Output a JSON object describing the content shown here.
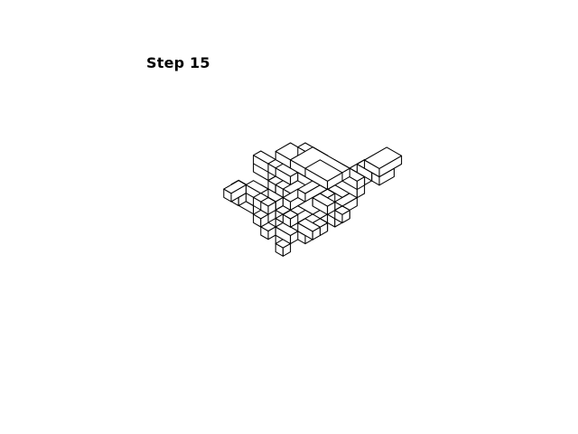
{
  "title": "Step 15",
  "style": {
    "background": "#ffffff",
    "line_color": "#000000",
    "face_color": "#ffffff"
  },
  "scene": {
    "type": "isometric voxel assembly",
    "blocks": [
      [
        3,
        -2,
        4,
        3,
        1,
        2
      ],
      [
        2,
        -3,
        3,
        2,
        1,
        1
      ],
      [
        2,
        0,
        2,
        2,
        1,
        1
      ],
      [
        4,
        -2,
        2,
        1,
        2,
        1
      ],
      [
        3,
        0,
        3,
        1,
        1,
        1
      ],
      [
        -2,
        -3,
        1,
        2,
        2,
        1
      ],
      [
        -1,
        -1,
        2,
        2,
        3,
        1
      ],
      [
        0,
        -4,
        1,
        3,
        2,
        1
      ],
      [
        -3,
        0,
        2,
        1,
        2,
        1
      ],
      [
        1,
        2,
        1,
        2,
        1,
        1
      ],
      [
        -1,
        -2,
        3,
        3,
        2,
        1
      ],
      [
        1,
        -1,
        3,
        1,
        3,
        1
      ],
      [
        0,
        1,
        2,
        1,
        2,
        1
      ],
      [
        -2,
        1,
        2,
        2,
        1,
        1
      ],
      [
        3,
        3,
        1,
        2,
        1,
        1
      ],
      [
        -1,
        -1,
        0,
        4,
        2,
        1
      ],
      [
        0,
        2,
        0,
        2,
        2,
        1
      ],
      [
        2,
        1,
        0,
        2,
        3,
        1
      ],
      [
        -4,
        2,
        1,
        3,
        1,
        1
      ],
      [
        -3,
        3,
        0,
        2,
        1,
        2
      ],
      [
        1,
        0,
        1,
        2,
        2,
        1
      ],
      [
        2,
        4,
        2,
        1,
        1,
        1
      ],
      [
        0,
        3,
        1,
        1,
        1,
        1
      ],
      [
        -4,
        0,
        3,
        2,
        1,
        1
      ],
      [
        -5,
        2,
        0,
        2,
        2,
        1
      ],
      [
        -3,
        -1,
        3,
        2,
        2,
        1
      ],
      [
        -1,
        4,
        2,
        1,
        1,
        1
      ],
      [
        3,
        1,
        3,
        2,
        1,
        1
      ],
      [
        -6,
        0,
        2,
        2,
        1,
        2
      ],
      [
        -7,
        2,
        0,
        2,
        1,
        1
      ],
      [
        -5,
        4,
        1,
        1,
        1,
        1
      ],
      [
        0,
        3,
        -2,
        1,
        1,
        1
      ],
      [
        1,
        4,
        -2,
        1,
        1,
        1
      ],
      [
        -1,
        4,
        -1,
        1,
        1,
        1
      ],
      [
        4,
        2,
        1,
        1,
        1,
        1
      ],
      [
        4,
        -1,
        1,
        1,
        2,
        1
      ],
      [
        5,
        0,
        2,
        1,
        1,
        1
      ],
      [
        -1,
        -2,
        5,
        5,
        3,
        1
      ],
      [
        -2,
        -3,
        4,
        2,
        1,
        1
      ],
      [
        -3,
        -2,
        4,
        1,
        2,
        1
      ],
      [
        3,
        -5,
        4,
        2,
        2,
        1
      ],
      [
        4,
        -4,
        5,
        2,
        1,
        1
      ],
      [
        5,
        -6,
        6,
        2,
        3,
        1
      ],
      [
        6,
        -5,
        5,
        1,
        2,
        1
      ],
      [
        -1,
        -3,
        3,
        2,
        2,
        1
      ],
      [
        0,
        -2,
        4,
        2,
        3,
        1
      ],
      [
        1,
        -1,
        5,
        3,
        2,
        1
      ],
      [
        -4,
        3,
        2,
        2,
        1,
        1
      ],
      [
        -5,
        4,
        2,
        1,
        2,
        1
      ],
      [
        -3,
        -1,
        5,
        2,
        2,
        1
      ],
      [
        2,
        -2,
        5,
        2,
        2,
        1
      ],
      [
        -2,
        -2,
        5,
        3,
        1,
        1
      ],
      [
        -1,
        5,
        1,
        1,
        1,
        1
      ],
      [
        1,
        4,
        0,
        2,
        1,
        1
      ],
      [
        1,
        -3,
        3,
        3,
        1,
        1
      ],
      [
        2,
        2,
        1,
        1,
        2,
        1
      ]
    ]
  }
}
